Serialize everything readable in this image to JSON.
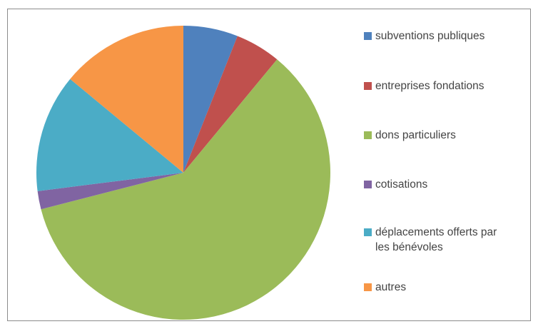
{
  "chart_data": {
    "type": "pie",
    "categories": [
      "subventions publiques",
      "entreprises fondations",
      "dons particuliers",
      "cotisations",
      "déplacements offerts par les bénévoles",
      "autres"
    ],
    "values": [
      6,
      5,
      60,
      2,
      13,
      14
    ],
    "colors": [
      "#4f81bd",
      "#c0504d",
      "#9bbb59",
      "#8064a2",
      "#4bacc6",
      "#f79646"
    ]
  }
}
